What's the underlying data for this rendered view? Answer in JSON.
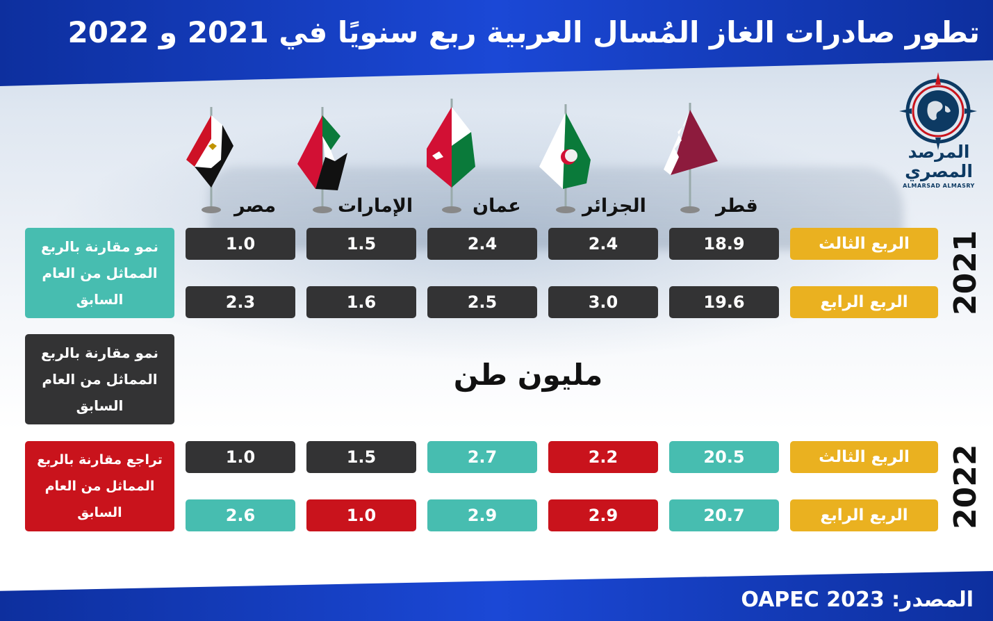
{
  "title": "تطور صادرات الغاز المُسال العربية ربع سنويًا في 2021 و 2022",
  "unit": "مليون طن",
  "source": "المصدر: OAPEC 2023",
  "logo": {
    "ar_line1": "المرصد",
    "ar_line2": "المصري",
    "en": "ALMARSAD ALMASRY"
  },
  "legend": {
    "growth_teal": "نمو مقارنة بالربع المماثل من العام السابق",
    "growth_dark": "نمو مقارنة بالربع المماثل من العام السابق",
    "decline_red": "تراجع مقارنة بالربع المماثل من العام السابق"
  },
  "colors": {
    "dark": "#333334",
    "teal": "#47bdb0",
    "red": "#c9131c",
    "quarter_label": "#eab120",
    "header": "#1b48d6"
  },
  "chart_data": {
    "type": "table",
    "title": "تطور صادرات الغاز المُسال العربية ربع سنويًا في 2021 و 2022",
    "unit": "مليون طن",
    "countries": [
      "قطر",
      "الجزائر",
      "عمان",
      "الإمارات",
      "مصر"
    ],
    "years": [
      {
        "year": "2021",
        "rows": [
          {
            "quarter": "الربع الثالث",
            "values": [
              18.9,
              2.4,
              2.4,
              1.5,
              1.0
            ],
            "labels": [
              "18.9",
              "2.4",
              "2.4",
              "1.5",
              "1.0"
            ],
            "status": [
              "dark",
              "dark",
              "dark",
              "dark",
              "dark"
            ]
          },
          {
            "quarter": "الربع الرابع",
            "values": [
              19.6,
              3.0,
              2.5,
              1.6,
              2.3
            ],
            "labels": [
              "19.6",
              "3.0",
              "2.5",
              "1.6",
              "2.3"
            ],
            "status": [
              "dark",
              "dark",
              "dark",
              "dark",
              "dark"
            ]
          }
        ]
      },
      {
        "year": "2022",
        "rows": [
          {
            "quarter": "الربع الثالث",
            "values": [
              20.5,
              2.2,
              2.7,
              1.5,
              1.0
            ],
            "labels": [
              "20.5",
              "2.2",
              "2.7",
              "1.5",
              "1.0"
            ],
            "status": [
              "teal",
              "red",
              "teal",
              "dark",
              "dark"
            ]
          },
          {
            "quarter": "الربع الرابع",
            "values": [
              20.7,
              2.9,
              2.9,
              1.0,
              2.6
            ],
            "labels": [
              "20.7",
              "2.9",
              "2.9",
              "1.0",
              "2.6"
            ],
            "status": [
              "teal",
              "red",
              "teal",
              "red",
              "teal"
            ]
          }
        ]
      }
    ]
  }
}
